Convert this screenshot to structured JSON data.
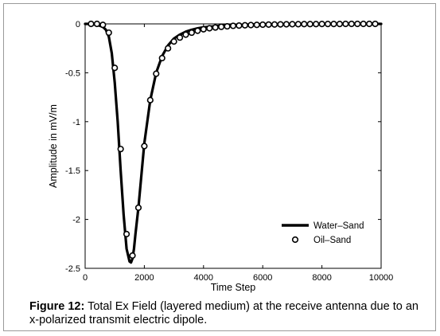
{
  "caption": {
    "label": "Figure 12:",
    "text": " Total Ex Field (layered medium) at the receive antenna due to an x-polarized transmit electric dipole."
  },
  "chart_data": {
    "type": "line",
    "title": "",
    "xlabel": "Time Step",
    "ylabel": "Amplitude in mV/m",
    "xlim": [
      0,
      10000
    ],
    "ylim": [
      -2.5,
      0
    ],
    "xticks": [
      0,
      2000,
      4000,
      6000,
      8000,
      10000
    ],
    "yticks": [
      0,
      -0.5,
      -1,
      -1.5,
      -2,
      -2.5
    ],
    "xtick_labels": [
      "0",
      "2000",
      "4000",
      "6000",
      "8000",
      "10000"
    ],
    "ytick_labels": [
      "0",
      "-0.5",
      "-1",
      "-1.5",
      "-2",
      "-2.5"
    ],
    "grid": false,
    "legend_position": "bottom-right",
    "series": [
      {
        "name": "Water–Sand",
        "style": "line",
        "color": "#000000",
        "x": [
          0,
          200,
          400,
          600,
          700,
          800,
          900,
          1000,
          1100,
          1200,
          1300,
          1400,
          1500,
          1550,
          1600,
          1650,
          1700,
          1800,
          1900,
          2000,
          2200,
          2400,
          2600,
          2800,
          3000,
          3200,
          3400,
          3600,
          3800,
          4000,
          4500,
          5000,
          5500,
          6000,
          7000,
          8000,
          9000,
          10000
        ],
        "y": [
          0,
          0,
          -0.01,
          -0.03,
          -0.06,
          -0.13,
          -0.3,
          -0.6,
          -1.0,
          -1.5,
          -1.95,
          -2.3,
          -2.43,
          -2.44,
          -2.4,
          -2.3,
          -2.15,
          -1.88,
          -1.55,
          -1.22,
          -0.78,
          -0.5,
          -0.33,
          -0.22,
          -0.15,
          -0.11,
          -0.08,
          -0.06,
          -0.045,
          -0.035,
          -0.02,
          -0.012,
          -0.007,
          -0.004,
          -0.002,
          -0.001,
          0,
          0
        ]
      },
      {
        "name": "Oil–Sand",
        "style": "markers",
        "marker": "circle",
        "color": "#000000",
        "x": [
          200,
          400,
          600,
          800,
          1000,
          1200,
          1400,
          1600,
          1800,
          2000,
          2200,
          2400,
          2600,
          2800,
          3000,
          3200,
          3400,
          3600,
          3800,
          4000,
          4200,
          4400,
          4600,
          4800,
          5000,
          5200,
          5400,
          5600,
          5800,
          6000,
          6200,
          6400,
          6600,
          6800,
          7000,
          7200,
          7400,
          7600,
          7800,
          8000,
          8200,
          8400,
          8600,
          8800,
          9000,
          9200,
          9400,
          9600,
          9800
        ],
        "y": [
          0,
          0,
          -0.01,
          -0.09,
          -0.45,
          -1.28,
          -2.15,
          -2.37,
          -1.88,
          -1.25,
          -0.78,
          -0.51,
          -0.35,
          -0.25,
          -0.18,
          -0.14,
          -0.11,
          -0.09,
          -0.07,
          -0.055,
          -0.045,
          -0.037,
          -0.03,
          -0.025,
          -0.02,
          -0.017,
          -0.014,
          -0.012,
          -0.01,
          -0.008,
          -0.007,
          -0.006,
          -0.005,
          -0.004,
          -0.003,
          -0.003,
          -0.002,
          -0.002,
          -0.002,
          -0.001,
          -0.001,
          -0.001,
          -0.001,
          0,
          0,
          0,
          0,
          0,
          0
        ]
      }
    ]
  }
}
